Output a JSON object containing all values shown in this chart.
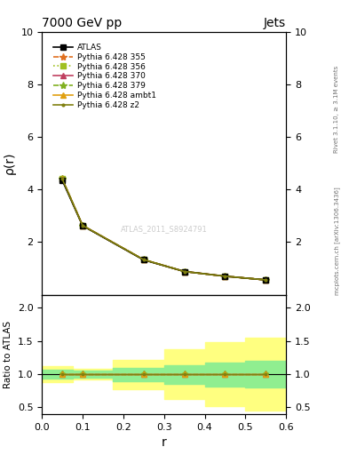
{
  "title": "7000 GeV pp",
  "title_right": "Jets",
  "right_label_top": "Rivet 3.1.10, ≥ 3.1M events",
  "right_label_bottom": "mcplots.cern.ch [arXiv:1306.3436]",
  "watermark": "ATLAS_2011_S8924791",
  "xlabel": "r",
  "ylabel_top": "ρ(r)",
  "ylabel_bottom": "Ratio to ATLAS",
  "atlas_x": [
    0.05,
    0.1,
    0.25,
    0.35,
    0.45,
    0.55
  ],
  "atlas_y": [
    4.35,
    2.62,
    1.32,
    0.88,
    0.7,
    0.56
  ],
  "pythia_y": [
    4.4,
    2.63,
    1.33,
    0.88,
    0.7,
    0.56
  ],
  "series": [
    {
      "label": "Pythia 6.428 355",
      "color": "#e07020",
      "linestyle": "--",
      "marker": "*",
      "ms": 6
    },
    {
      "label": "Pythia 6.428 356",
      "color": "#a0c020",
      "linestyle": ":",
      "marker": "s",
      "ms": 4
    },
    {
      "label": "Pythia 6.428 370",
      "color": "#c04060",
      "linestyle": "-",
      "marker": "^",
      "ms": 5
    },
    {
      "label": "Pythia 6.428 379",
      "color": "#80b020",
      "linestyle": "--",
      "marker": "*",
      "ms": 6
    },
    {
      "label": "Pythia 6.428 ambt1",
      "color": "#e0a010",
      "linestyle": "-",
      "marker": "^",
      "ms": 5
    },
    {
      "label": "Pythia 6.428 z2",
      "color": "#808010",
      "linestyle": "-",
      "marker": ".",
      "ms": 4
    }
  ],
  "main_ylim": [
    0,
    10
  ],
  "main_yticks": [
    2,
    4,
    6,
    8,
    10
  ],
  "ratio_ylim": [
    0.4,
    2.2
  ],
  "ratio_yticks": [
    0.5,
    1.0,
    1.5,
    2.0
  ],
  "xlim": [
    0.0,
    0.6
  ],
  "xticks": [
    0.0,
    0.1,
    0.2,
    0.3,
    0.4,
    0.5,
    0.6
  ],
  "bin_edges": [
    0.0,
    0.075,
    0.175,
    0.3,
    0.4,
    0.5,
    0.6
  ],
  "yellow_up": [
    1.12,
    1.08,
    1.22,
    1.38,
    1.48,
    1.55
  ],
  "yellow_dn": [
    0.88,
    0.92,
    0.78,
    0.62,
    0.52,
    0.45
  ],
  "green_up": [
    1.07,
    1.05,
    1.1,
    1.14,
    1.18,
    1.2
  ],
  "green_dn": [
    0.93,
    0.95,
    0.9,
    0.86,
    0.82,
    0.8
  ],
  "green_color": "#90ee90",
  "yellow_color": "#ffff80"
}
